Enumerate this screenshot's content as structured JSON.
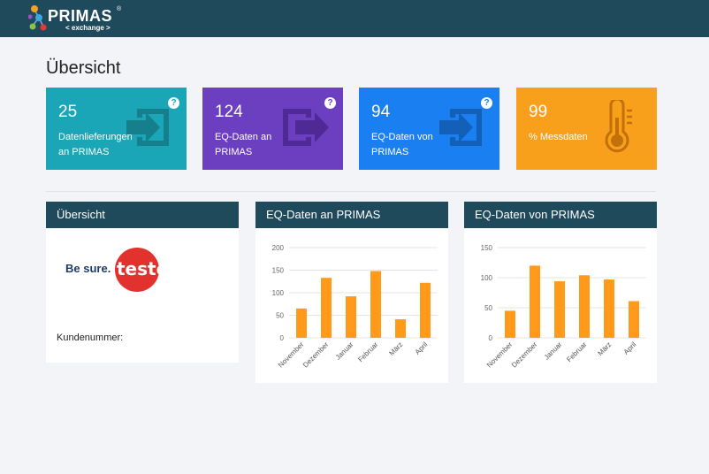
{
  "app": {
    "logo_text": "PRIMAS",
    "logo_reg": "®",
    "logo_sub": "< exchange >"
  },
  "page": {
    "title": "Übersicht"
  },
  "stats": [
    {
      "value": "25",
      "label": "Datenlieferungen an PRIMAS",
      "color": "#1aa6b7",
      "icon": "arrow-into-box-icon",
      "help": "?"
    },
    {
      "value": "124",
      "label": "EQ-Daten an PRIMAS",
      "color": "#6c3fc0",
      "icon": "arrow-out-of-box-icon",
      "help": "?"
    },
    {
      "value": "94",
      "label": "EQ-Daten von PRIMAS",
      "color": "#1a7ff0",
      "icon": "arrow-into-box-icon",
      "help": "?"
    },
    {
      "value": "99",
      "label": "% Messdaten",
      "color": "#f8a01c",
      "icon": "thermometer-icon"
    }
  ],
  "overview": {
    "title": "Übersicht",
    "brand_tag": "Be sure.",
    "brand_name": "testo",
    "kunde_label": "Kundenummer:"
  },
  "charts": {
    "an_title": "EQ-Daten an PRIMAS",
    "von_title": "EQ-Daten von PRIMAS"
  },
  "chart_data": [
    {
      "type": "bar",
      "title": "EQ-Daten an PRIMAS",
      "categories": [
        "November",
        "Dezember",
        "Januar",
        "Februar",
        "März",
        "April"
      ],
      "values": [
        65,
        133,
        92,
        148,
        41,
        122
      ],
      "yticks": [
        0,
        50,
        100,
        150,
        200
      ],
      "ylim": [
        0,
        200
      ],
      "grid": true,
      "color": "#ff9a1a"
    },
    {
      "type": "bar",
      "title": "EQ-Daten von PRIMAS",
      "categories": [
        "November",
        "Dezember",
        "Januar",
        "Februar",
        "März",
        "April"
      ],
      "values": [
        45,
        120,
        94,
        104,
        97,
        61
      ],
      "yticks": [
        0,
        50,
        100,
        150
      ],
      "ylim": [
        0,
        150
      ],
      "grid": true,
      "color": "#ff9a1a"
    }
  ]
}
